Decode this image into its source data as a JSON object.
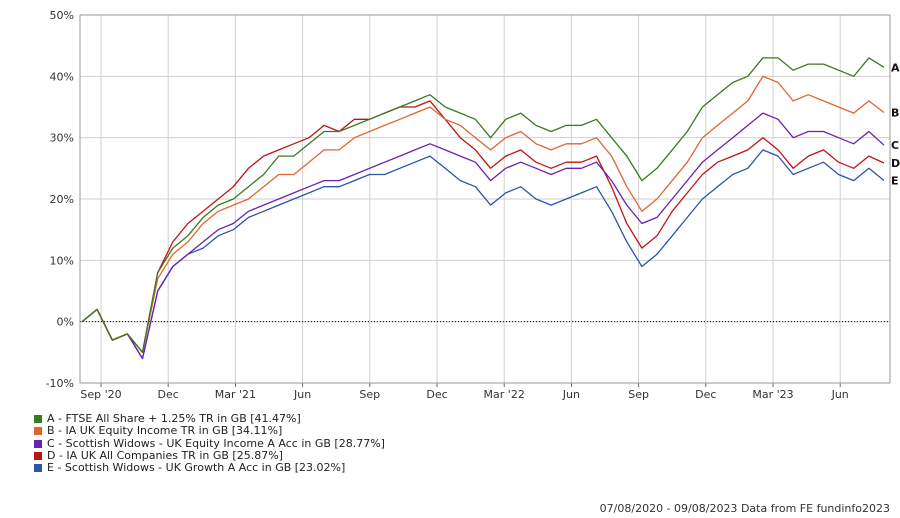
{
  "chart_data": {
    "type": "line",
    "title": "",
    "xlabel": "",
    "ylabel": "",
    "ylim": [
      -10,
      50
    ],
    "y_ticks": [
      -10,
      0,
      10,
      20,
      30,
      40,
      50
    ],
    "y_tick_suffix": "%",
    "x_ticks": [
      "Sep '20",
      "Dec",
      "Mar '21",
      "Jun",
      "Sep",
      "Dec",
      "Mar '22",
      "Jun",
      "Sep",
      "Dec",
      "Mar '23",
      "Jun"
    ],
    "grid": true,
    "zero_line": "dotted",
    "legend_position": "bottom-left",
    "series": [
      {
        "key": "A",
        "name": "A - FTSE All Share + 1.25% TR in GB [41.47%]",
        "color": "#3a7a1e",
        "values": [
          0,
          2,
          -3,
          -2,
          -5,
          8,
          12,
          14,
          17,
          19,
          20,
          22,
          24,
          27,
          27,
          29,
          31,
          31,
          32,
          33,
          34,
          35,
          36,
          37,
          35,
          34,
          33,
          30,
          33,
          34,
          32,
          31,
          32,
          32,
          33,
          30,
          27,
          23,
          25,
          28,
          31,
          35,
          37,
          39,
          40,
          43,
          43,
          41,
          42,
          42,
          41,
          40,
          43,
          41.47
        ]
      },
      {
        "key": "B",
        "name": "B - IA UK Equity Income TR in GB [34.11%]",
        "color": "#e0662f",
        "values": [
          0,
          2,
          -3,
          -2,
          -5,
          7,
          11,
          13,
          16,
          18,
          19,
          20,
          22,
          24,
          24,
          26,
          28,
          28,
          30,
          31,
          32,
          33,
          34,
          35,
          33,
          32,
          30,
          28,
          30,
          31,
          29,
          28,
          29,
          29,
          30,
          27,
          22,
          18,
          20,
          23,
          26,
          30,
          32,
          34,
          36,
          40,
          39,
          36,
          37,
          36,
          35,
          34,
          36,
          34.11
        ]
      },
      {
        "key": "C",
        "name": "C - Scottish Widows - UK Equity Income A Acc in GB [28.77%]",
        "color": "#6a22b0",
        "values": [
          0,
          2,
          -3,
          -2,
          -6,
          5,
          9,
          11,
          13,
          15,
          16,
          18,
          19,
          20,
          21,
          22,
          23,
          23,
          24,
          25,
          26,
          27,
          28,
          29,
          28,
          27,
          26,
          23,
          25,
          26,
          25,
          24,
          25,
          25,
          26,
          23,
          19,
          16,
          17,
          20,
          23,
          26,
          28,
          30,
          32,
          34,
          33,
          30,
          31,
          31,
          30,
          29,
          31,
          28.77
        ]
      },
      {
        "key": "D",
        "name": "D - IA UK All Companies TR in GB [25.87%]",
        "color": "#c01414",
        "values": [
          0,
          2,
          -3,
          -2,
          -5,
          8,
          13,
          16,
          18,
          20,
          22,
          25,
          27,
          28,
          29,
          30,
          32,
          31,
          33,
          33,
          34,
          35,
          35,
          36,
          33,
          30,
          28,
          25,
          27,
          28,
          26,
          25,
          26,
          26,
          27,
          22,
          16,
          12,
          14,
          18,
          21,
          24,
          26,
          27,
          28,
          30,
          28,
          25,
          27,
          28,
          26,
          25,
          27,
          25.87
        ]
      },
      {
        "key": "E",
        "name": "E - Scottish Widows - UK Growth A Acc in GB [23.02%]",
        "color": "#2a55a8",
        "values": [
          0,
          2,
          -3,
          -2,
          -6,
          5,
          9,
          11,
          12,
          14,
          15,
          17,
          18,
          19,
          20,
          21,
          22,
          22,
          23,
          24,
          24,
          25,
          26,
          27,
          25,
          23,
          22,
          19,
          21,
          22,
          20,
          19,
          20,
          21,
          22,
          18,
          13,
          9,
          11,
          14,
          17,
          20,
          22,
          24,
          25,
          28,
          27,
          24,
          25,
          26,
          24,
          23,
          25,
          23.02
        ]
      }
    ]
  },
  "footer": {
    "date_range": "07/08/2020 - 09/08/2023",
    "source": "Data from FE fundinfo2023"
  }
}
